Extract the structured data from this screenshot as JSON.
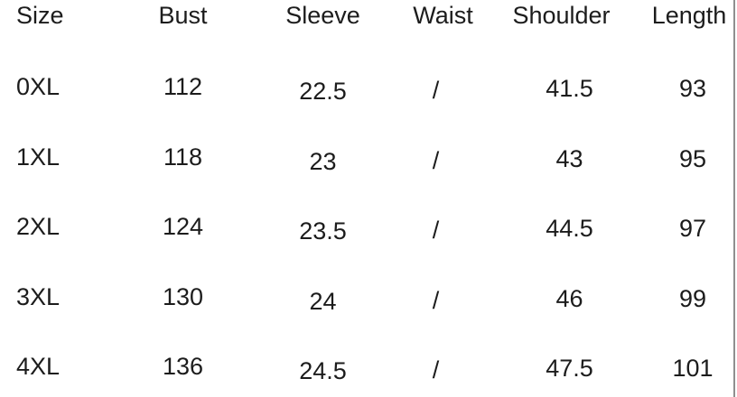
{
  "chart_data": {
    "type": "table",
    "columns": [
      "Size",
      "Bust",
      "Sleeve",
      "Waist",
      "Shoulder",
      "Length"
    ],
    "rows": [
      [
        "0XL",
        "112",
        "22.5",
        "/",
        "41.5",
        "93"
      ],
      [
        "1XL",
        "118",
        "23",
        "/",
        "43",
        "95"
      ],
      [
        "2XL",
        "124",
        "23.5",
        "/",
        "44.5",
        "97"
      ],
      [
        "3XL",
        "130",
        "24",
        "/",
        "46",
        "99"
      ],
      [
        "4XL",
        "136",
        "24.5",
        "/",
        "47.5",
        "101"
      ]
    ]
  },
  "colors": {
    "text": "#1c1c1c",
    "right_divider": "#8f8f8f",
    "background": "#ffffff"
  }
}
